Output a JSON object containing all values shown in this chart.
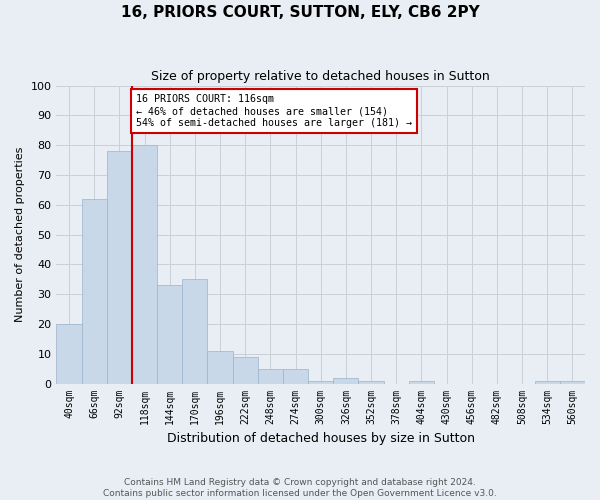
{
  "title": "16, PRIORS COURT, SUTTON, ELY, CB6 2PY",
  "subtitle": "Size of property relative to detached houses in Sutton",
  "xlabel": "Distribution of detached houses by size in Sutton",
  "ylabel": "Number of detached properties",
  "bar_color": "#c8d8e8",
  "bar_edge_color": "#9ab4cc",
  "background_color": "#e8eef4",
  "categories": [
    "40sqm",
    "66sqm",
    "92sqm",
    "118sqm",
    "144sqm",
    "170sqm",
    "196sqm",
    "222sqm",
    "248sqm",
    "274sqm",
    "300sqm",
    "326sqm",
    "352sqm",
    "378sqm",
    "404sqm",
    "430sqm",
    "456sqm",
    "482sqm",
    "508sqm",
    "534sqm",
    "560sqm"
  ],
  "values": [
    20,
    62,
    78,
    80,
    33,
    35,
    11,
    9,
    5,
    5,
    1,
    2,
    1,
    0,
    1,
    0,
    0,
    0,
    0,
    1,
    1
  ],
  "vline_color": "#cc0000",
  "annotation_text": "16 PRIORS COURT: 116sqm\n← 46% of detached houses are smaller (154)\n54% of semi-detached houses are larger (181) →",
  "annotation_box_color": "#ffffff",
  "annotation_box_edge": "#cc0000",
  "ylim": [
    0,
    100
  ],
  "yticks": [
    0,
    10,
    20,
    30,
    40,
    50,
    60,
    70,
    80,
    90,
    100
  ],
  "footnote": "Contains HM Land Registry data © Crown copyright and database right 2024.\nContains public sector information licensed under the Open Government Licence v3.0.",
  "grid_color": "#c8d0d8",
  "title_fontsize": 11,
  "subtitle_fontsize": 9,
  "ylabel_fontsize": 8,
  "xlabel_fontsize": 9,
  "tick_fontsize": 7,
  "footnote_fontsize": 6.5
}
